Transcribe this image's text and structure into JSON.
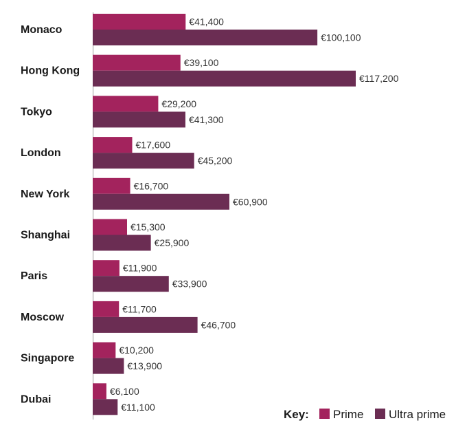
{
  "chart_data": {
    "type": "bar",
    "orientation": "horizontal",
    "categories": [
      "Monaco",
      "Hong Kong",
      "Tokyo",
      "London",
      "New York",
      "Shanghai",
      "Paris",
      "Moscow",
      "Singapore",
      "Dubai"
    ],
    "series": [
      {
        "name": "Prime",
        "color": "#a3235d",
        "values": [
          41400,
          39100,
          29200,
          17600,
          16700,
          15300,
          11900,
          11700,
          10200,
          6100
        ],
        "labels": [
          "€41,400",
          "€39,100",
          "€29,200",
          "€17,600",
          "€16,700",
          "€15,300",
          "€11,900",
          "€11,700",
          "€10,200",
          "€6,100"
        ]
      },
      {
        "name": "Ultra prime",
        "color": "#6b2d53",
        "values": [
          100100,
          117200,
          41300,
          45200,
          60900,
          25900,
          33900,
          46700,
          13900,
          11100
        ],
        "labels": [
          "€100,100",
          "€117,200",
          "€41,300",
          "€45,200",
          "€60,900",
          "€25,900",
          "€33,900",
          "€46,700",
          "€13,900",
          "€11,100"
        ]
      }
    ],
    "xlim": [
      0,
      117200
    ],
    "grid": false,
    "legend": {
      "title": "Key:",
      "position": "bottom-right"
    }
  }
}
